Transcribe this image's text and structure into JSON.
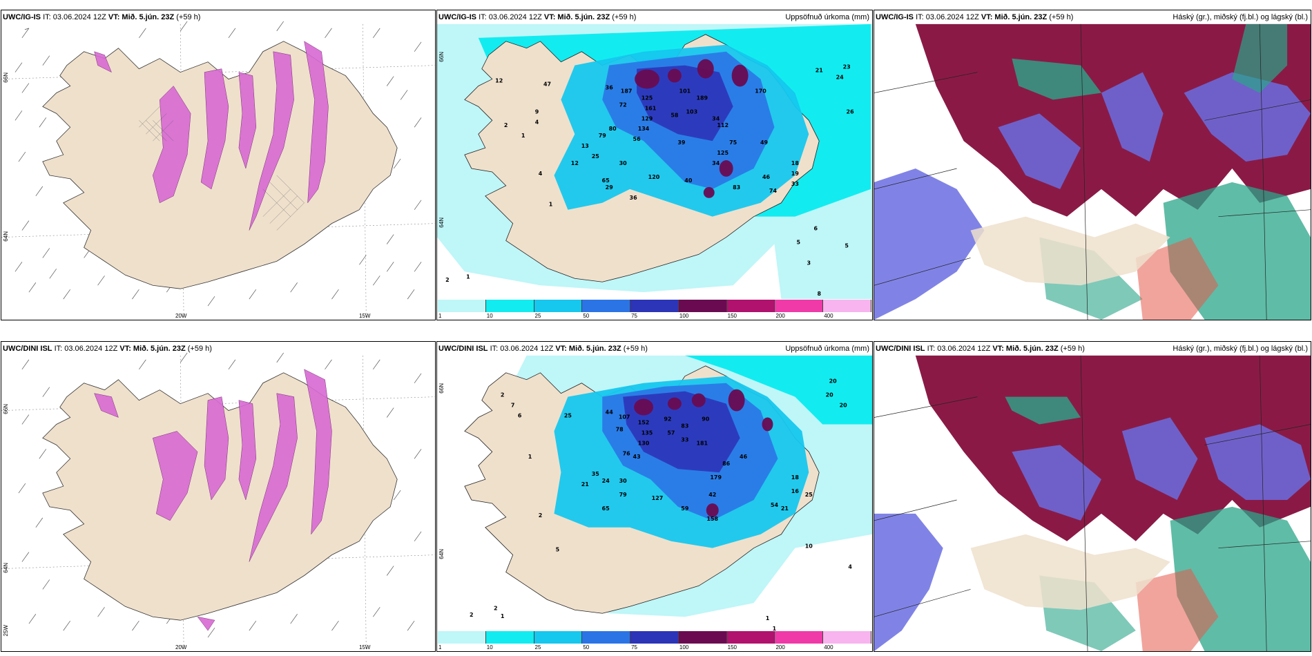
{
  "panels": {
    "top_left": {
      "model": "UWC/IG-IS",
      "it": "IT: 03.06.2024 12Z",
      "vt": "VT: Mið. 5.jún. 23Z",
      "lead": "(+59 h)"
    },
    "top_mid": {
      "model": "UWC/IG-IS",
      "it": "IT: 03.06.2024 12Z",
      "vt": "VT: Mið. 5.jún. 23Z",
      "lead": "(+59 h)",
      "title": "Uppsöfnuð úrkoma (mm)"
    },
    "top_right": {
      "model": "UWC/IG-IS",
      "it": "IT: 03.06.2024 12Z",
      "vt": "VT: Mið. 5.jún. 23Z",
      "lead": "(+59 h)",
      "title": "Háský (gr.), miðský (fj.bl.) og lágský (bl.)"
    },
    "bot_left": {
      "model": "UWC/DINI ISL",
      "it": "IT: 03.06.2024 12Z",
      "vt": "VT: Mið. 5.jún. 23Z",
      "lead": "(+59 h)"
    },
    "bot_mid": {
      "model": "UWC/DINI ISL",
      "it": "IT: 03.06.2024 12Z",
      "vt": "VT: Mið. 5.jún. 23Z",
      "lead": "(+59 h)",
      "title": "Uppsöfnuð úrkoma (mm)"
    },
    "bot_right": {
      "model": "UWC/DINI ISL",
      "it": "IT: 03.06.2024 12Z",
      "vt": "VT: Mið. 5.jún. 23Z",
      "lead": "(+59 h)",
      "title": "Háský (gr.), miðský (fj.bl.) og lágský (bl.)"
    }
  },
  "axes": {
    "lat_66": "66N",
    "lat_64": "64N",
    "lon_20": "20W",
    "lon_15": "15W",
    "lon_25": "25W"
  },
  "colorbar": {
    "ticks": [
      "1",
      "10",
      "25",
      "50",
      "75",
      "100",
      "150",
      "200",
      "400"
    ],
    "colors": [
      "#bff6f8",
      "#12ecf0",
      "#16c7ee",
      "#2b74e6",
      "#2c34b8",
      "#6a0b52",
      "#b0126e",
      "#ef3aa8",
      "#f7b4ee"
    ]
  },
  "top_precip_numbers": [
    "12",
    "47",
    "36",
    "187",
    "125",
    "161",
    "101",
    "189",
    "103",
    "58",
    "72",
    "129",
    "134",
    "56",
    "80",
    "79",
    "39",
    "34",
    "112",
    "75",
    "49",
    "170",
    "21",
    "23",
    "24",
    "26",
    "9",
    "4",
    "13",
    "25",
    "12",
    "30",
    "65",
    "120",
    "40",
    "34",
    "125",
    "83",
    "29",
    "36",
    "18",
    "19",
    "33",
    "46",
    "74",
    "2",
    "1",
    "4",
    "1",
    "6",
    "5",
    "5",
    "3",
    "8",
    "2",
    "1"
  ],
  "bot_precip_numbers": [
    "2",
    "7",
    "6",
    "25",
    "44",
    "107",
    "152",
    "135",
    "130",
    "57",
    "78",
    "92",
    "83",
    "76",
    "43",
    "90",
    "181",
    "33",
    "86",
    "46",
    "179",
    "20",
    "20",
    "20",
    "1",
    "21",
    "24",
    "30",
    "35",
    "42",
    "127",
    "59",
    "158",
    "65",
    "79",
    "18",
    "16",
    "25",
    "54",
    "21",
    "10",
    "4",
    "2",
    "2",
    "5",
    "1",
    "1",
    "1"
  ],
  "colors": {
    "land": "#efe0cc",
    "sea": "#ffffff",
    "precip_pink": "#e07ad8",
    "cloud_high": "#2aa58a",
    "cloud_mid": "#6a6de0",
    "cloud_low": "#8a1a45"
  }
}
